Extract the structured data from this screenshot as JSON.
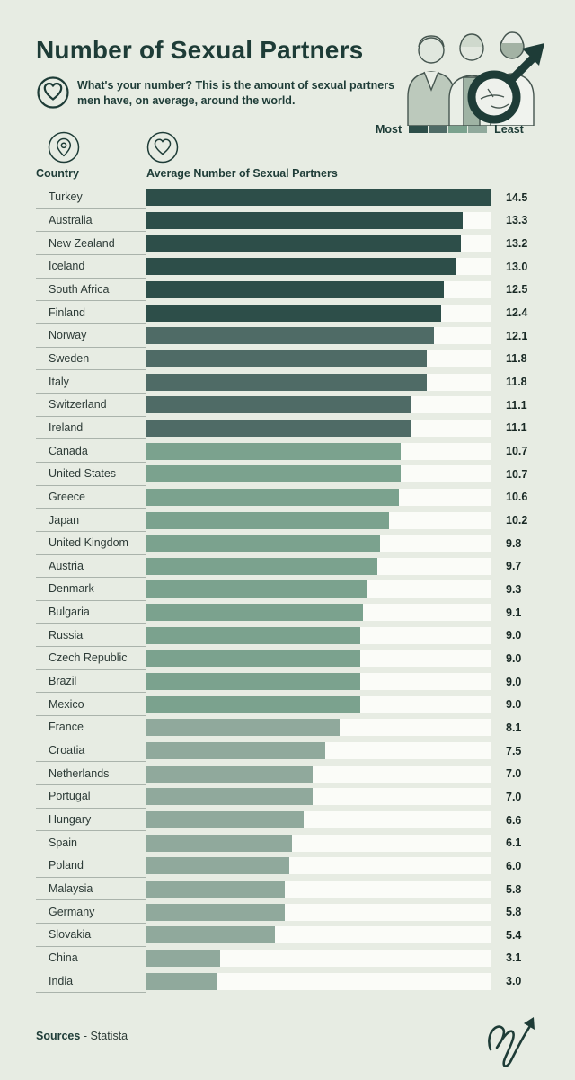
{
  "page": {
    "title": "Number of Sexual Partners",
    "subtitle_line1": "What's your number? This is the amount of sexual partners",
    "subtitle_line2": "men have, on average, around the world.",
    "footer_sources_label": "Sources",
    "footer_sources_value": " - Statista"
  },
  "legend": {
    "most_label": "Most",
    "least_label": "Least"
  },
  "columns": {
    "country_label": "Country",
    "value_label": "Average Number of Sexual Partners"
  },
  "colors": {
    "background": "#e7ece3",
    "bar_track": "#fbfcf8",
    "text_dark": "#1e3c37",
    "separator": "#aab3ab",
    "tiers": [
      "#2d4e49",
      "#4f6b66",
      "#7ba28e",
      "#90a99c"
    ]
  },
  "icons": {
    "subtitle": "heart-icon",
    "country_column": "location-pin-icon",
    "value_column": "heart-icon",
    "top_right": "men-illustration-with-male-symbol",
    "bottom_right": "signature-arrow-logo"
  },
  "chart_data": {
    "type": "bar",
    "orientation": "horizontal",
    "title": "Number of Sexual Partners",
    "xlabel": "Average Number of Sexual Partners",
    "ylabel": "Country",
    "xlim": [
      0,
      14.5
    ],
    "grid": false,
    "legend_position": "top-right",
    "legend_most": "Most",
    "legend_least": "Least",
    "categories": [
      "Turkey",
      "Australia",
      "New Zealand",
      "Iceland",
      "South Africa",
      "Finland",
      "Norway",
      "Sweden",
      "Italy",
      "Switzerland",
      "Ireland",
      "Canada",
      "United States",
      "Greece",
      "Japan",
      "United Kingdom",
      "Austria",
      "Denmark",
      "Bulgaria",
      "Russia",
      "Czech Republic",
      "Brazil",
      "Mexico",
      "France",
      "Croatia",
      "Netherlands",
      "Portugal",
      "Hungary",
      "Spain",
      "Poland",
      "Malaysia",
      "Germany",
      "Slovakia",
      "China",
      "India"
    ],
    "values": [
      14.5,
      13.3,
      13.2,
      13.0,
      12.5,
      12.4,
      12.1,
      11.8,
      11.8,
      11.1,
      11.1,
      10.7,
      10.7,
      10.6,
      10.2,
      9.8,
      9.7,
      9.3,
      9.1,
      9.0,
      9.0,
      9.0,
      9.0,
      8.1,
      7.5,
      7.0,
      7.0,
      6.6,
      6.1,
      6.0,
      5.8,
      5.8,
      5.4,
      3.1,
      3.0
    ],
    "value_labels": [
      "14.5",
      "13.3",
      "13.2",
      "13.0",
      "12.5",
      "12.4",
      "12.1",
      "11.8",
      "11.8",
      "11.1",
      "11.1",
      "10.7",
      "10.7",
      "10.6",
      "10.2",
      "9.8",
      "9.7",
      "9.3",
      "9.1",
      "9.0",
      "9.0",
      "9.0",
      "9.0",
      "8.1",
      "7.5",
      "7.0",
      "7.0",
      "6.6",
      "6.1",
      "6.0",
      "5.8",
      "5.8",
      "5.4",
      "3.1",
      "3.0"
    ],
    "color_tier_index": [
      0,
      0,
      0,
      0,
      0,
      0,
      1,
      1,
      1,
      1,
      1,
      2,
      2,
      2,
      2,
      2,
      2,
      2,
      2,
      2,
      2,
      2,
      2,
      3,
      3,
      3,
      3,
      3,
      3,
      3,
      3,
      3,
      3,
      3,
      3
    ],
    "max_value": 14.5
  }
}
